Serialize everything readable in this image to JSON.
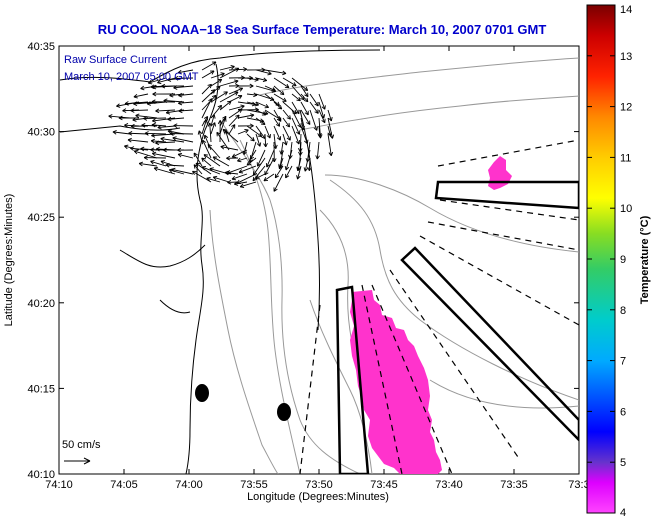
{
  "title": "RU COOL  NOAA−18  Sea Surface Temperature:  March 10, 2007 0701 GMT",
  "legend": {
    "line1": "Raw Surface Current",
    "line2": "March 10, 2007 05:00 GMT",
    "scale_label": "50 cm/s"
  },
  "axes": {
    "xlabel": "Longitude (Degrees:Minutes)",
    "ylabel": "Latitude (Degrees:Minutes)",
    "x_ticks": [
      "74:10",
      "74:05",
      "74:00",
      "73:55",
      "73:50",
      "73:45",
      "73:40",
      "73:35",
      "73:3"
    ],
    "y_ticks": [
      "40:35",
      "40:30",
      "40:25",
      "40:20",
      "40:15",
      "40:10"
    ]
  },
  "colorbar": {
    "label": "Temperature (°C)",
    "min": 4,
    "max": 14,
    "ticks": [
      "14",
      "13",
      "12",
      "11",
      "10",
      "9",
      "8",
      "7",
      "6",
      "5",
      "4"
    ],
    "colors": {
      "top": "#7a0000",
      "red": "#ff0000",
      "orange": "#ff8800",
      "yellow": "#ffff00",
      "green": "#33cc44",
      "cyan": "#00cccc",
      "blue": "#0000ff",
      "purple": "#6633cc",
      "magenta": "#ff00ff"
    }
  },
  "colors": {
    "sst_patch": "#ff33cc",
    "coastline": "#000000",
    "bathymetry": "#999999",
    "title_blue": "#0000cc"
  }
}
